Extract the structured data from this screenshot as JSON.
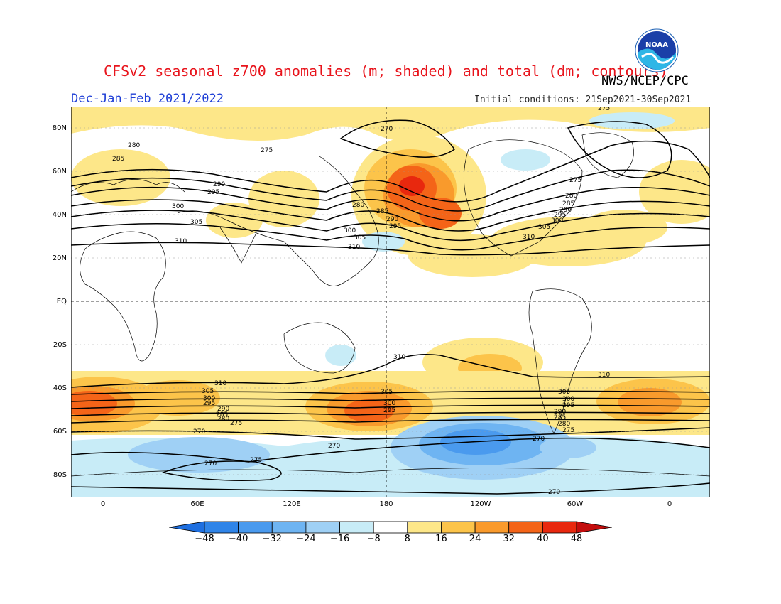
{
  "header": {
    "title": "CFSv2 seasonal z700 anomalies (m; shaded) and total (dm; contours)",
    "agency": "NWS/NCEP/CPC",
    "season": "Dec-Jan-Feb 2021/2022",
    "initial_conditions": "Initial conditions: 21Sep2021-30Sep2021"
  },
  "logo": {
    "text": "NOAA"
  },
  "axes": {
    "lat_labels": [
      "80N",
      "60N",
      "40N",
      "20N",
      "EQ",
      "20S",
      "40S",
      "60S",
      "80S"
    ],
    "lon_labels": [
      "0",
      "60E",
      "120E",
      "180",
      "120W",
      "60W",
      "0"
    ]
  },
  "colorbar": {
    "labels": [
      "-48",
      "-40",
      "-32",
      "-24",
      "-16",
      "-8",
      "8",
      "16",
      "24",
      "32",
      "40",
      "48"
    ],
    "colors": [
      "#1e6fe0",
      "#2f84e8",
      "#4a9aee",
      "#6eb4f2",
      "#9fd0f5",
      "#c8ecf7",
      "#ffffff",
      "#fde789",
      "#fcc44a",
      "#f99a2c",
      "#f46418",
      "#e8280e",
      "#c30d0d"
    ]
  },
  "contour_labels": [
    "280",
    "285",
    "290",
    "295",
    "300",
    "305",
    "310",
    "275",
    "280",
    "285",
    "290",
    "295",
    "300",
    "305",
    "310",
    "275",
    "280",
    "285",
    "290",
    "295",
    "300",
    "305",
    "310",
    "270",
    "275",
    "280",
    "285",
    "290",
    "270",
    "275",
    "280",
    "285",
    "290",
    "295",
    "300",
    "305",
    "310",
    "270"
  ]
}
